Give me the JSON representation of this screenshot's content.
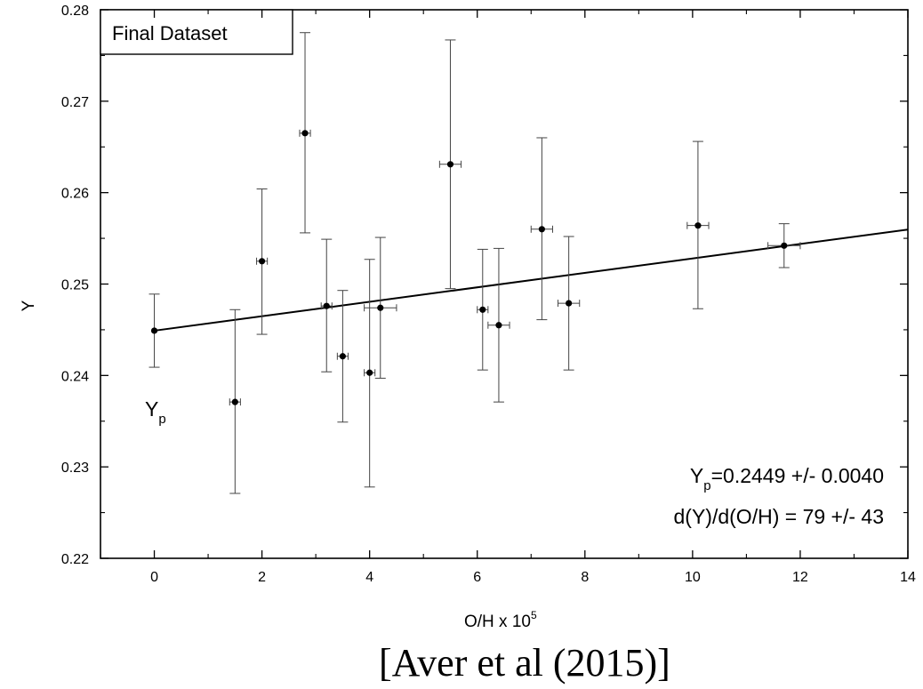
{
  "chart_data": {
    "type": "scatter",
    "legend_box": "Final Dataset",
    "xlabel": "O/H x 10",
    "xlabel_exponent": "5",
    "ylabel": "Y",
    "xlim": [
      -1,
      14
    ],
    "ylim": [
      0.22,
      0.28
    ],
    "x_ticks": [
      0,
      2,
      4,
      6,
      8,
      10,
      12,
      14
    ],
    "y_ticks": [
      0.22,
      0.23,
      0.24,
      0.25,
      0.26,
      0.27,
      0.28
    ],
    "x_tick_labels": [
      "0",
      "2",
      "4",
      "6",
      "8",
      "10",
      "12",
      "14"
    ],
    "y_tick_labels": [
      "0.22",
      "0.23",
      "0.24",
      "0.25",
      "0.26",
      "0.27",
      "0.28"
    ],
    "grid": false,
    "points": [
      {
        "x": 0.0,
        "y": 0.2449,
        "ylo": 0.2409,
        "yhi": 0.2489,
        "xerr": 0.0
      },
      {
        "x": 1.5,
        "y": 0.2371,
        "ylo": 0.2271,
        "yhi": 0.2472,
        "xerr": 0.1
      },
      {
        "x": 2.0,
        "y": 0.2525,
        "ylo": 0.2445,
        "yhi": 0.2604,
        "xerr": 0.1
      },
      {
        "x": 2.8,
        "y": 0.2665,
        "ylo": 0.2556,
        "yhi": 0.2775,
        "xerr": 0.1
      },
      {
        "x": 3.2,
        "y": 0.2476,
        "ylo": 0.2404,
        "yhi": 0.2549,
        "xerr": 0.1
      },
      {
        "x": 3.5,
        "y": 0.2421,
        "ylo": 0.2349,
        "yhi": 0.2493,
        "xerr": 0.1
      },
      {
        "x": 4.0,
        "y": 0.2403,
        "ylo": 0.2278,
        "yhi": 0.2527,
        "xerr": 0.1
      },
      {
        "x": 4.2,
        "y": 0.2474,
        "ylo": 0.2397,
        "yhi": 0.2551,
        "xerr": 0.3
      },
      {
        "x": 5.5,
        "y": 0.2631,
        "ylo": 0.2495,
        "yhi": 0.2767,
        "xerr": 0.2
      },
      {
        "x": 6.1,
        "y": 0.2472,
        "ylo": 0.2406,
        "yhi": 0.2538,
        "xerr": 0.1
      },
      {
        "x": 6.4,
        "y": 0.2455,
        "ylo": 0.2371,
        "yhi": 0.2539,
        "xerr": 0.2
      },
      {
        "x": 7.2,
        "y": 0.256,
        "ylo": 0.2461,
        "yhi": 0.266,
        "xerr": 0.2
      },
      {
        "x": 7.7,
        "y": 0.2479,
        "ylo": 0.2406,
        "yhi": 0.2552,
        "xerr": 0.2
      },
      {
        "x": 10.1,
        "y": 0.2564,
        "ylo": 0.2473,
        "yhi": 0.2656,
        "xerr": 0.2
      },
      {
        "x": 11.7,
        "y": 0.2542,
        "ylo": 0.2518,
        "yhi": 0.2566,
        "xerr": 0.3
      }
    ],
    "fit_line": {
      "intercept": 0.2449,
      "slope": 0.00079,
      "x_range": [
        0,
        14
      ]
    },
    "annotations": {
      "yp_label_main": "Y",
      "yp_label_sub": "p",
      "fit_line1_main": "Y",
      "fit_line1_sub": "p",
      "fit_line1_rest": "=0.2449 +/- 0.0040",
      "fit_line2": "d(Y)/d(O/H) = 79 +/- 43"
    }
  },
  "caption": "[Aver et al (2015)]"
}
